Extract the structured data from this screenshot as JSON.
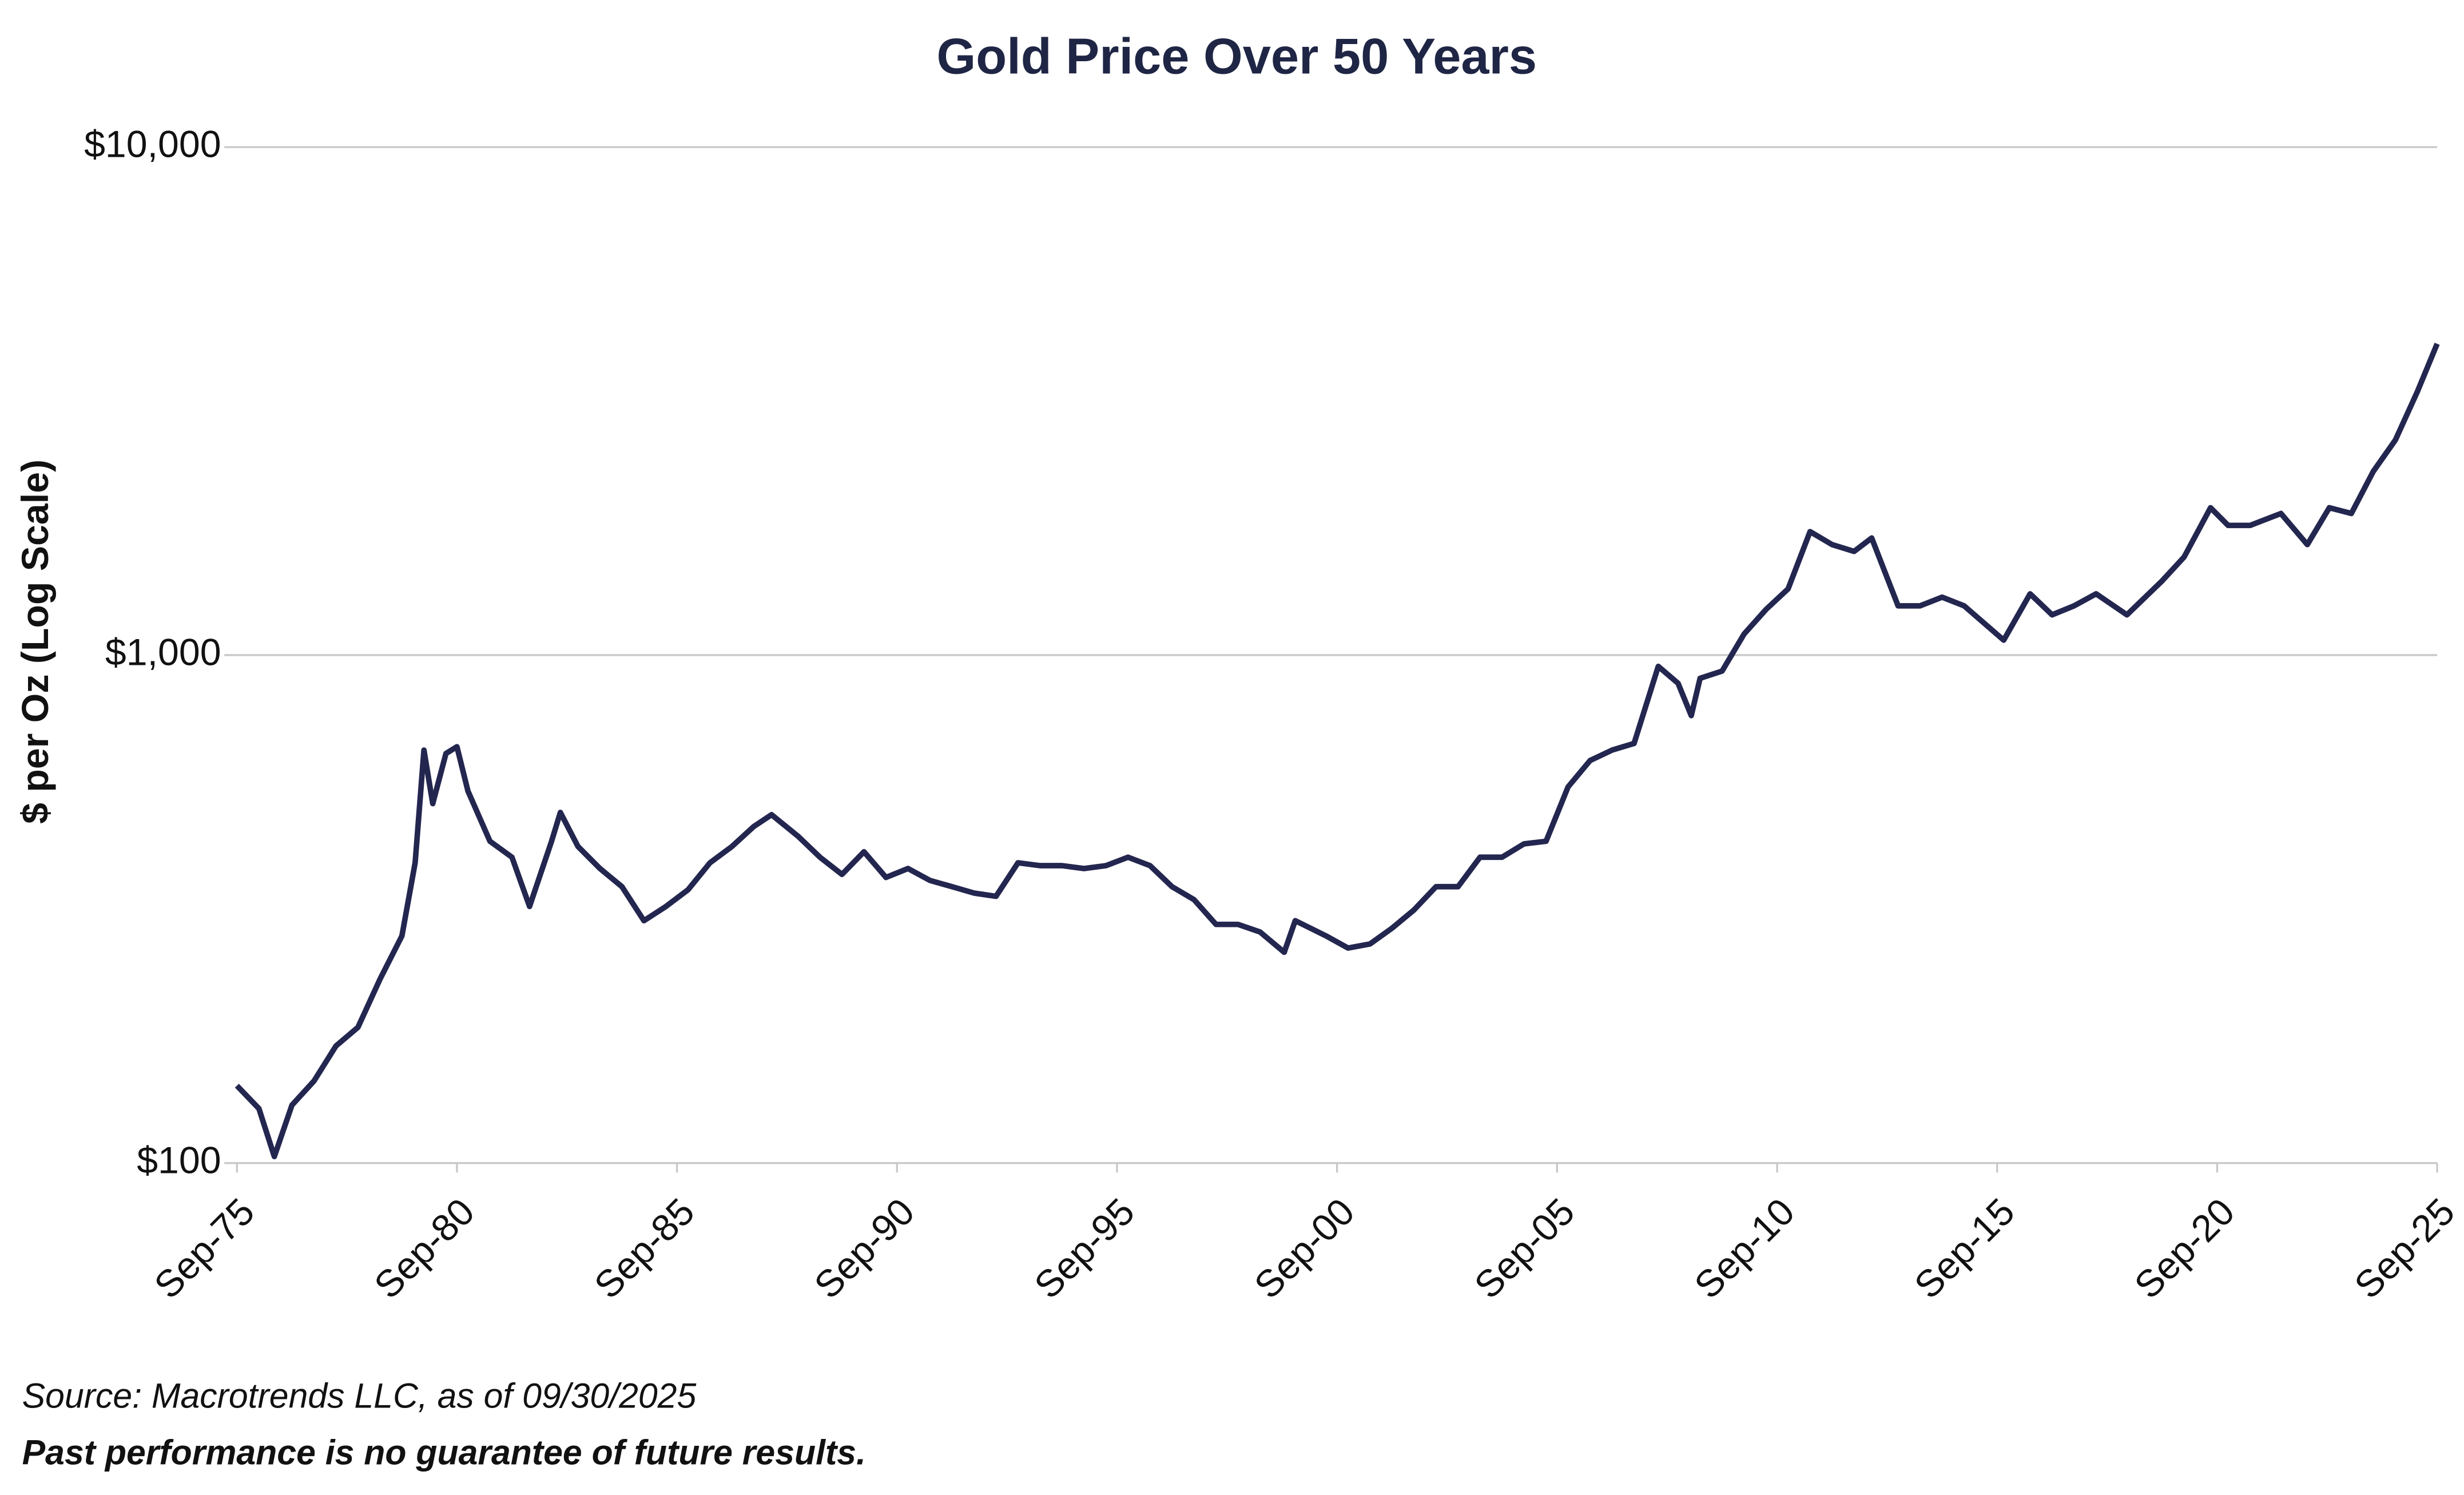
{
  "chart_data": {
    "type": "line",
    "title": "Gold Price Over 50 Years",
    "y_label": "$ per Oz (Log Scale)",
    "source": "Source: Macrotrends LLC, as of 09/30/2025",
    "disclaimer": "Past performance is no guarantee of future results.",
    "log_scale": true,
    "grid": true,
    "ylim": [
      100,
      10000
    ],
    "yticks": [
      {
        "value": 100,
        "label": "$100"
      },
      {
        "value": 1000,
        "label": "$1,000"
      },
      {
        "value": 10000,
        "label": "$10,000"
      }
    ],
    "xlim": [
      1975.75,
      2025.75
    ],
    "xticks": [
      {
        "value": 1975.75,
        "label": "Sep-75"
      },
      {
        "value": 1980.75,
        "label": "Sep-80"
      },
      {
        "value": 1985.75,
        "label": "Sep-85"
      },
      {
        "value": 1990.75,
        "label": "Sep-90"
      },
      {
        "value": 1995.75,
        "label": "Sep-95"
      },
      {
        "value": 2000.75,
        "label": "Sep-00"
      },
      {
        "value": 2005.75,
        "label": "Sep-05"
      },
      {
        "value": 2010.75,
        "label": "Sep-10"
      },
      {
        "value": 2015.75,
        "label": "Sep-15"
      },
      {
        "value": 2020.75,
        "label": "Sep-20"
      },
      {
        "value": 2025.75,
        "label": "Sep-25"
      }
    ],
    "x": [
      1975.75,
      1976.25,
      1976.6,
      1977.0,
      1977.5,
      1978.0,
      1978.5,
      1979.0,
      1979.5,
      1979.8,
      1980.0,
      1980.2,
      1980.5,
      1980.75,
      1981.0,
      1981.5,
      1982.0,
      1982.4,
      1982.9,
      1983.1,
      1983.5,
      1984.0,
      1984.5,
      1985.0,
      1985.5,
      1986.0,
      1986.5,
      1987.0,
      1987.5,
      1987.9,
      1988.5,
      1989.0,
      1989.5,
      1990.0,
      1990.5,
      1991.0,
      1991.5,
      1992.0,
      1992.5,
      1993.0,
      1993.5,
      1994.0,
      1994.5,
      1995.0,
      1995.5,
      1996.0,
      1996.5,
      1997.0,
      1997.5,
      1998.0,
      1998.5,
      1999.0,
      1999.55,
      1999.8,
      2000.5,
      2001.0,
      2001.5,
      2002.0,
      2002.5,
      2003.0,
      2003.5,
      2004.0,
      2004.5,
      2005.0,
      2005.5,
      2006.0,
      2006.5,
      2007.0,
      2007.5,
      2008.05,
      2008.5,
      2008.8,
      2009.0,
      2009.5,
      2010.0,
      2010.5,
      2011.0,
      2011.5,
      2012.0,
      2012.5,
      2012.9,
      2013.5,
      2014.0,
      2014.5,
      2015.0,
      2015.9,
      2016.5,
      2017.0,
      2017.5,
      2018.0,
      2018.7,
      2019.5,
      2020.0,
      2020.6,
      2021.0,
      2021.5,
      2022.2,
      2022.8,
      2023.3,
      2023.8,
      2024.3,
      2024.8,
      2025.3,
      2025.75
    ],
    "series": [
      {
        "name": "Gold",
        "color": "#23264f",
        "values": [
          142,
          128,
          103,
          130,
          145,
          170,
          185,
          230,
          280,
          390,
          650,
          510,
          640,
          660,
          540,
          430,
          400,
          320,
          430,
          490,
          420,
          380,
          350,
          300,
          320,
          345,
          390,
          420,
          460,
          485,
          440,
          400,
          370,
          410,
          365,
          380,
          360,
          350,
          340,
          335,
          390,
          385,
          385,
          380,
          385,
          400,
          385,
          350,
          330,
          295,
          295,
          285,
          260,
          300,
          280,
          265,
          270,
          290,
          315,
          350,
          350,
          400,
          400,
          425,
          430,
          550,
          620,
          650,
          670,
          950,
          880,
          760,
          900,
          930,
          1100,
          1230,
          1350,
          1750,
          1650,
          1600,
          1700,
          1250,
          1250,
          1300,
          1250,
          1070,
          1320,
          1200,
          1250,
          1320,
          1200,
          1400,
          1560,
          1950,
          1800,
          1800,
          1900,
          1650,
          1950,
          1900,
          2300,
          2650,
          3300,
          4100
        ]
      }
    ]
  }
}
